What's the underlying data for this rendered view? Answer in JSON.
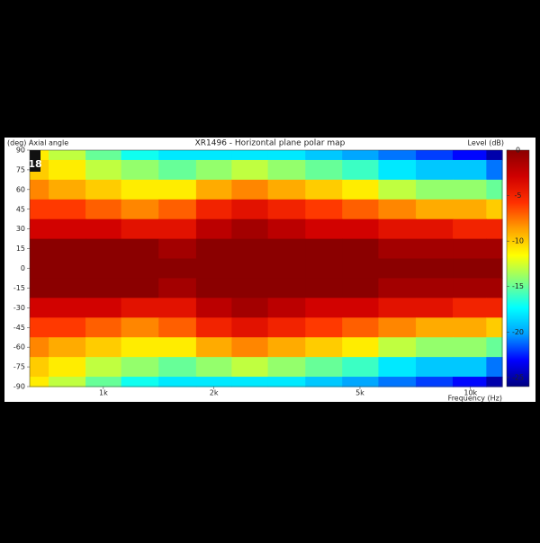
{
  "chart_data": {
    "type": "heatmap",
    "title": "XR1496 - Horizontal plane polar map",
    "y_label": "(deg)  Axial angle",
    "x_label": "Frequency  (Hz)",
    "z_label": "Level  (dB)",
    "logo": "18",
    "x": [
      630,
      800,
      1000,
      1250,
      1600,
      2000,
      2500,
      3150,
      4000,
      5000,
      6300,
      8000,
      10000,
      12200
    ],
    "y": [
      90,
      75,
      60,
      45,
      30,
      15,
      0,
      -15,
      -30,
      -45,
      -60,
      -75,
      -90
    ],
    "values": [
      [
        -11,
        -13,
        -15,
        -17,
        -18,
        -18,
        -18,
        -18,
        -19,
        -20,
        -21,
        -22,
        -23,
        -25
      ],
      [
        -10,
        -11,
        -13,
        -14,
        -15,
        -14,
        -13,
        -14,
        -15,
        -16,
        -18,
        -19,
        -19,
        -21
      ],
      [
        -8,
        -9,
        -10,
        -11,
        -11,
        -9,
        -8,
        -9,
        -10,
        -11,
        -13,
        -14,
        -14,
        -15
      ],
      [
        -6,
        -6,
        -7,
        -8,
        -7,
        -5,
        -4,
        -5,
        -6,
        -7,
        -8,
        -9,
        -9,
        -10
      ],
      [
        -3,
        -3,
        -3,
        -4,
        -4,
        -2,
        -1,
        -2,
        -3,
        -3,
        -4,
        -4,
        -5,
        -5
      ],
      [
        0,
        0,
        0,
        0,
        -1,
        0,
        0,
        0,
        0,
        0,
        -1,
        -1,
        -1,
        -1
      ],
      [
        0,
        0,
        0,
        0,
        0,
        0,
        0,
        0,
        0,
        0,
        0,
        0,
        0,
        0
      ],
      [
        0,
        0,
        0,
        0,
        -1,
        0,
        0,
        0,
        0,
        0,
        -1,
        -1,
        -1,
        -1
      ],
      [
        -3,
        -3,
        -3,
        -4,
        -4,
        -2,
        -1,
        -2,
        -3,
        -3,
        -4,
        -4,
        -5,
        -5
      ],
      [
        -6,
        -6,
        -7,
        -8,
        -7,
        -5,
        -4,
        -5,
        -6,
        -7,
        -8,
        -9,
        -9,
        -10
      ],
      [
        -8,
        -9,
        -10,
        -11,
        -11,
        -9,
        -8,
        -9,
        -10,
        -11,
        -13,
        -14,
        -14,
        -15
      ],
      [
        -10,
        -11,
        -13,
        -14,
        -15,
        -14,
        -13,
        -14,
        -15,
        -16,
        -18,
        -19,
        -19,
        -21
      ],
      [
        -11,
        -13,
        -15,
        -17,
        -18,
        -18,
        -18,
        -18,
        -19,
        -20,
        -21,
        -22,
        -23,
        -25
      ]
    ],
    "xlim": [
      630,
      12200
    ],
    "xscale": "log",
    "xticks": [
      {
        "value": 1000,
        "label": "1k"
      },
      {
        "value": 2000,
        "label": "2k"
      },
      {
        "value": 5000,
        "label": "5k"
      },
      {
        "value": 10000,
        "label": "10k"
      }
    ],
    "ylim": [
      -90,
      90
    ],
    "yticks": [
      90,
      75,
      60,
      45,
      30,
      15,
      0,
      -15,
      -30,
      -45,
      -60,
      -75,
      -90
    ],
    "zlim": [
      -26,
      0
    ],
    "zticks": [
      0,
      -5,
      -10,
      -15,
      -20,
      -25
    ],
    "colormap": [
      "#00007f",
      "#0000ff",
      "#00a0ff",
      "#00ffff",
      "#80ff80",
      "#ffff00",
      "#ffa000",
      "#ff3000",
      "#d00000",
      "#8b0000"
    ]
  }
}
